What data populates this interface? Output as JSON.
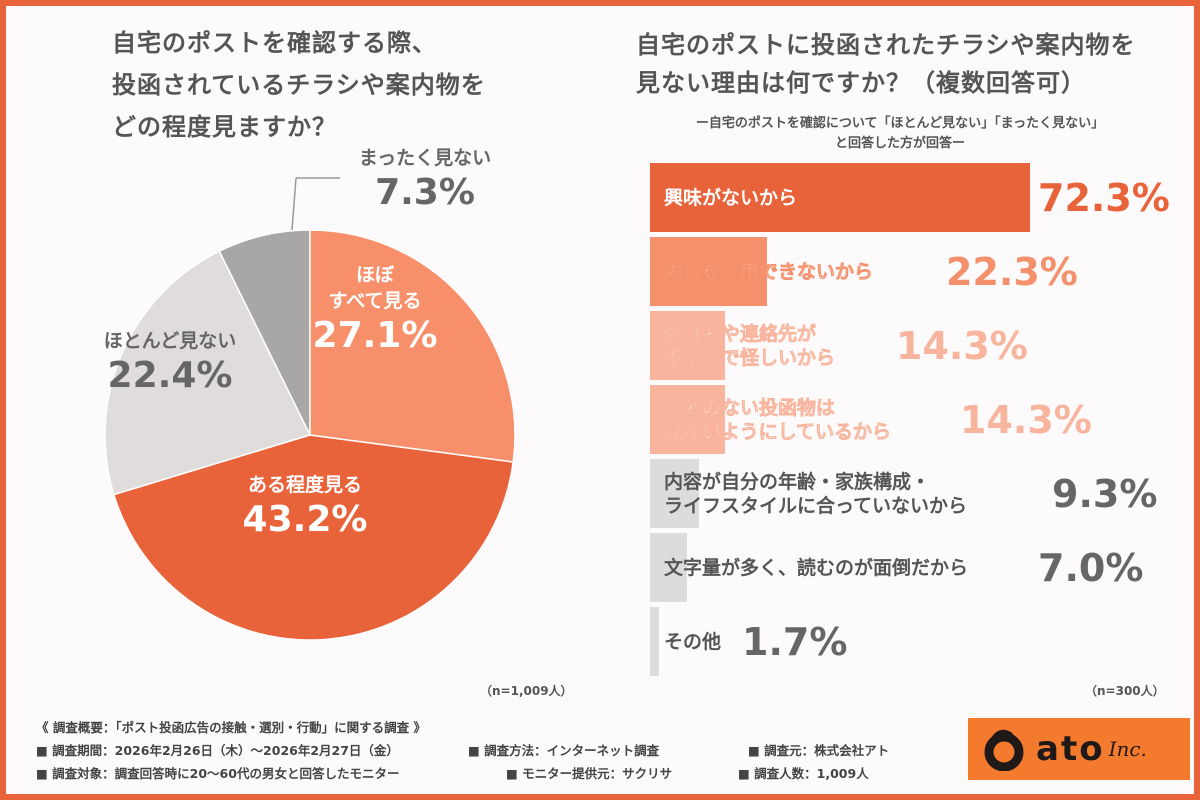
{
  "colors": {
    "accent": "#e8623a",
    "orange_mid": "#f4906b",
    "orange_light": "#f8b49c",
    "gray_light": "#e0dcdc",
    "gray_dark": "#a9a6a6",
    "bar_gray": "#dcdcdc"
  },
  "left": {
    "title": [
      "自宅のポストを確認する際、",
      "投函されているチラシや案内物を",
      "どの程度見ますか？"
    ],
    "n": "（n=1,009人）"
  },
  "right": {
    "title": [
      "自宅のポストに投函されたチラシや案内物を",
      "見ない理由は何ですか？（複数回答可）"
    ],
    "subtitle": [
      "ー自宅のポストを確認について「ほとんど見ない」「まったく見ない」",
      "と回答した方が回答ー"
    ],
    "n": "（n=300人）"
  },
  "chart_data": [
    {
      "type": "pie",
      "start": "top",
      "direction": "clockwise",
      "slices": [
        {
          "label": "ほぼ\nすべて見る",
          "value": 27.1,
          "display": "27.1%",
          "color": "#f7906a"
        },
        {
          "label": "ある程度見る",
          "value": 43.2,
          "display": "43.2%",
          "color": "#e8623a"
        },
        {
          "label": "ほとんど見ない",
          "value": 22.4,
          "display": "22.4%",
          "color": "#e0dcdc"
        },
        {
          "label": "まったく見ない",
          "value": 7.3,
          "display": "7.3%",
          "color": "#a9a6a6"
        }
      ]
    },
    {
      "type": "bar",
      "orientation": "horizontal",
      "categories": [
        "興味がないから",
        "内容を信用できないから",
        "会社名や連絡先が\n不明瞭で怪しいから",
        "宛名のない投函物は\n見ないようにしているから",
        "内容が自分の年齢・家族構成・\nライフスタイルに合っていないから",
        "文字量が多く、読むのが面倒だから",
        "その他"
      ],
      "values": [
        72.3,
        22.3,
        14.3,
        14.3,
        9.3,
        7.0,
        1.7
      ],
      "display": [
        "72.3%",
        "22.3%",
        "14.3%",
        "14.3%",
        "9.3%",
        "7.0%",
        "1.7%"
      ],
      "colors": [
        "#e8623a",
        "#f4906b",
        "#f8b49c",
        "#f8b49c",
        "#dcdcdc",
        "#dcdcdc",
        "#dcdcdc"
      ]
    }
  ],
  "footer": {
    "heading": "《 調査概要：「ポスト投函広告の接触・選別・行動」に関する調査 》",
    "items": [
      "■ 調査期間：2026年2月26日（木）〜2026年2月27日（金）",
      "■ 調査方法：インターネット調査",
      "■ 調査元：株式会社アト",
      "■ 調査対象：調査回答時に20〜60代の男女と回答したモニター",
      "■ モニター提供元：サクリサ",
      "■ 調査人数：1,009人"
    ]
  },
  "logo": {
    "text": "ato",
    "inc": "Inc."
  }
}
